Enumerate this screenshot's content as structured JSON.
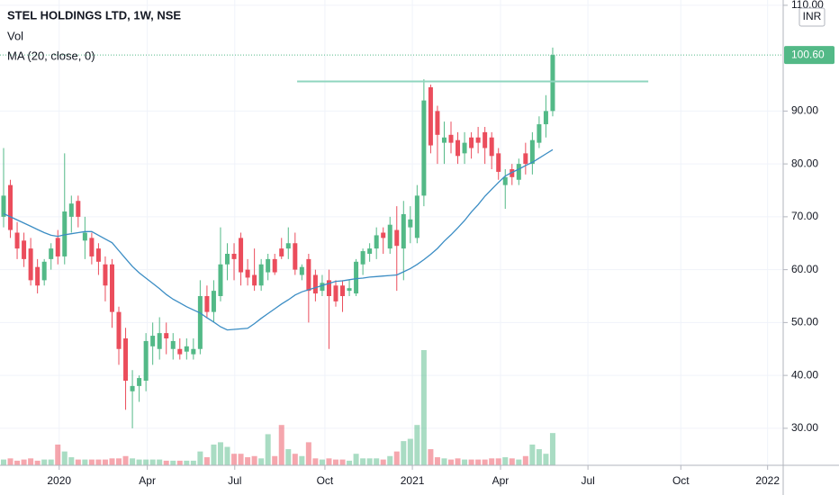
{
  "chart_data": {
    "type": "candlestick",
    "title": "STEL HOLDINGS LTD, 1W, NSE",
    "volume_label": "Vol",
    "ma_label": "MA (20, close, 0)",
    "currency": "INR",
    "open": [
      70,
      76,
      67,
      65.5,
      64,
      60.5,
      58,
      62,
      66,
      62.5,
      70,
      73,
      65.5,
      66,
      64,
      61,
      61,
      52,
      47,
      37,
      38,
      39,
      45.5,
      45,
      48,
      45,
      45,
      44.5,
      44,
      45,
      55,
      52,
      55,
      61,
      63,
      66,
      60,
      59,
      57,
      59.5,
      62,
      64,
      64,
      65,
      59,
      62,
      59,
      56,
      58,
      57,
      57,
      56,
      55.5,
      61,
      63,
      64,
      67,
      64,
      67.5,
      64,
      68,
      66,
      74,
      94.5,
      90,
      84,
      85.5,
      84.5,
      82,
      85,
      85,
      86,
      85,
      82,
      76,
      79,
      77,
      82,
      80,
      84,
      87.5,
      90
    ],
    "high": [
      83,
      77,
      69,
      67,
      66,
      62,
      62,
      65,
      67.5,
      82,
      74,
      74,
      70,
      67,
      65,
      62.5,
      62,
      53,
      49,
      41,
      40,
      48,
      50,
      51,
      50,
      48,
      47,
      47,
      47,
      58,
      57,
      58,
      68,
      65,
      65,
      67,
      62,
      64,
      62,
      63,
      63,
      66,
      68,
      67,
      61,
      63,
      60,
      59,
      60,
      58,
      58,
      58,
      62,
      64,
      65,
      68,
      68,
      70,
      72,
      73,
      72,
      76,
      96,
      95,
      91,
      88,
      88,
      86,
      86,
      86,
      87,
      87,
      86,
      83,
      79,
      80,
      81,
      84,
      86,
      89,
      93,
      102
    ],
    "low": [
      68,
      66,
      62,
      60.5,
      57,
      55.5,
      57,
      60,
      61,
      61,
      67,
      68,
      62,
      61,
      59,
      54,
      49,
      42,
      33.5,
      30,
      35,
      37,
      42,
      43,
      44,
      43,
      43,
      43,
      43,
      44,
      51,
      50,
      54,
      58,
      58,
      57,
      57,
      56,
      56,
      58,
      59,
      62,
      62,
      59,
      58,
      50,
      54,
      55,
      45,
      53,
      52,
      55,
      55,
      59,
      61.5,
      62,
      63,
      63,
      56,
      58,
      65,
      65,
      72,
      82,
      80,
      80,
      82,
      80,
      80,
      81,
      82,
      80,
      79,
      77,
      71.5,
      76,
      76,
      78,
      78,
      83,
      85,
      89
    ],
    "close": [
      74,
      67.5,
      64,
      62,
      58,
      57,
      61.5,
      64,
      62.5,
      71,
      72.5,
      70,
      67,
      62.5,
      61.5,
      57,
      52,
      45,
      39,
      38,
      39.5,
      46.5,
      47.5,
      48,
      47,
      46.5,
      44,
      45.5,
      45,
      55,
      52,
      56,
      61,
      63,
      62,
      59.5,
      58.5,
      57,
      61,
      62,
      59.5,
      62.5,
      65,
      60,
      60.5,
      56,
      55.5,
      57.5,
      55,
      54,
      55,
      56.5,
      61.5,
      63.5,
      64,
      66.5,
      66,
      68.5,
      64.5,
      70.5,
      69.5,
      74,
      92,
      83.5,
      85.5,
      85,
      84,
      81.5,
      84,
      83,
      84,
      83,
      81.5,
      78.5,
      77.5,
      77.5,
      80,
      80,
      84.5,
      87.5,
      90,
      100.6
    ],
    "volume": [
      5,
      6,
      4,
      5,
      6,
      4,
      5,
      5,
      18,
      12,
      7,
      5,
      5,
      5,
      5,
      5,
      6,
      6,
      8,
      6,
      5,
      5,
      5,
      5,
      4,
      4,
      4,
      4,
      4,
      12,
      7,
      18,
      20,
      16,
      10,
      10,
      7,
      8,
      6,
      27,
      8,
      35,
      14,
      10,
      8,
      20,
      6,
      5,
      6,
      5,
      5,
      4,
      10,
      6,
      6,
      6,
      5,
      8,
      12,
      21,
      23,
      35,
      100,
      14,
      7,
      6,
      5,
      6,
      5,
      5,
      5,
      5,
      6,
      6,
      7,
      6,
      5,
      8,
      18,
      14,
      10,
      28
    ],
    "ma": [
      70.6,
      70.0,
      69.4,
      68.8,
      68.2,
      67.6,
      67.0,
      66.5,
      66.3,
      66.6,
      66.8,
      67.0,
      67.2,
      67.2,
      66.5,
      65.8,
      65.1,
      63.6,
      62.1,
      60.6,
      59.4,
      58.4,
      57.4,
      56.4,
      55.3,
      54.4,
      53.7,
      53.0,
      52.4,
      51.8,
      50.9,
      50.1,
      49.2,
      48.6,
      48.7,
      48.8,
      48.9,
      49.8,
      50.8,
      51.7,
      52.6,
      53.5,
      54.3,
      55.2,
      55.8,
      56.2,
      56.6,
      57.0,
      57.4,
      57.8,
      57.9,
      58.1,
      58.3,
      58.4,
      58.6,
      58.7,
      58.8,
      58.9,
      59.0,
      59.6,
      60.2,
      61.0,
      61.9,
      62.9,
      64.0,
      65.4,
      66.6,
      67.9,
      69.3,
      70.9,
      72.3,
      73.9,
      75.2,
      76.5,
      77.7,
      78.4,
      79.0,
      79.7,
      80.3,
      81.1,
      81.9,
      82.7
    ],
    "last_price": {
      "value": 100.6,
      "label": "100.60"
    },
    "level": {
      "value": 95.6,
      "x": [
        43.3,
        95.1
      ]
    },
    "xlim": [
      -0.53,
      115
    ],
    "ylim": [
      23,
      111
    ],
    "volume_lim": [
      0,
      100
    ],
    "yticks": [
      {
        "value": 30,
        "label": "30.00"
      },
      {
        "value": 40,
        "label": "40.00"
      },
      {
        "value": 50,
        "label": "50.00"
      },
      {
        "value": 60,
        "label": "60.00"
      },
      {
        "value": 70,
        "label": "70.00"
      },
      {
        "value": 80,
        "label": "80.00"
      },
      {
        "value": 90,
        "label": "90.00"
      },
      {
        "value": 110,
        "label": "110.00"
      }
    ],
    "xticks": [
      {
        "value": 8.2,
        "label": "2020"
      },
      {
        "value": 21.2,
        "label": "Apr"
      },
      {
        "value": 34.1,
        "label": "Jul"
      },
      {
        "value": 47.4,
        "label": "Oct"
      },
      {
        "value": 60.3,
        "label": "2021"
      },
      {
        "value": 73.3,
        "label": "Apr"
      },
      {
        "value": 86.2,
        "label": "Jul"
      },
      {
        "value": 99.9,
        "label": "Oct"
      },
      {
        "value": 112.7,
        "label": "2022"
      }
    ],
    "grid": true,
    "colors": {
      "up": "#53b987",
      "down": "#eb4d5c",
      "ma": "#3b8dc4",
      "level": "#8fd6bf"
    }
  }
}
